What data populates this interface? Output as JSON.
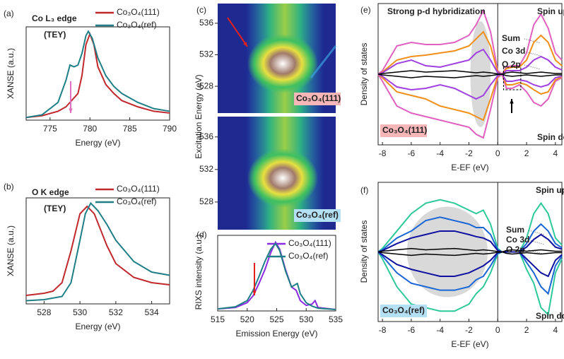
{
  "chart_data": [
    {
      "type": "line",
      "panel": "(a)",
      "annotations": [
        "Co L₃ edge",
        "(TEY)"
      ],
      "xlabel": "Energy (eV)",
      "ylabel": "XANSE (a.u.)",
      "xlim": [
        772,
        790
      ],
      "xticks": [
        775,
        780,
        785,
        790
      ],
      "ylim": [
        0,
        1.05
      ],
      "series": [
        {
          "name": "Co₃O₄(111)",
          "color": "#c0282d",
          "x": [
            772,
            774,
            776,
            777,
            778,
            778.5,
            779,
            779.5,
            780,
            780.5,
            781,
            782,
            783,
            784,
            786,
            788,
            790
          ],
          "values": [
            0.03,
            0.05,
            0.1,
            0.15,
            0.25,
            0.3,
            0.5,
            0.85,
            0.97,
            0.85,
            0.6,
            0.4,
            0.3,
            0.22,
            0.15,
            0.1,
            0.08
          ]
        },
        {
          "name": "Co₃O₄(ref)",
          "color": "#1e7f86",
          "x": [
            772,
            774,
            776,
            777,
            777.5,
            778,
            778.5,
            779,
            779.5,
            779.8,
            780.3,
            781,
            782,
            783,
            784,
            786,
            788,
            790
          ],
          "values": [
            0.03,
            0.06,
            0.2,
            0.45,
            0.62,
            0.6,
            0.62,
            0.75,
            0.95,
            1.0,
            0.92,
            0.7,
            0.5,
            0.38,
            0.3,
            0.2,
            0.13,
            0.1
          ]
        }
      ]
    },
    {
      "type": "line",
      "panel": "(b)",
      "annotations": [
        "O K edge",
        "(TEY)"
      ],
      "xlabel": "Energy (eV)",
      "ylabel": "XANSE (a.u.)",
      "xlim": [
        527,
        535
      ],
      "xticks": [
        528,
        530,
        532,
        534
      ],
      "ylim": [
        0,
        1
      ],
      "series": [
        {
          "name": "Co₃O₄(111)",
          "color": "#c0282d",
          "x": [
            527,
            528,
            528.5,
            529,
            529.5,
            530,
            530.4,
            530.8,
            531.5,
            532,
            533,
            534,
            535
          ],
          "values": [
            0.08,
            0.1,
            0.12,
            0.2,
            0.5,
            0.85,
            0.92,
            0.85,
            0.55,
            0.38,
            0.25,
            0.2,
            0.18
          ]
        },
        {
          "name": "Co₃O₄(ref)",
          "color": "#1e7f86",
          "x": [
            527,
            528,
            529,
            529.5,
            530,
            530.3,
            530.6,
            531,
            531.5,
            532,
            533,
            534,
            535
          ],
          "values": [
            0.03,
            0.04,
            0.07,
            0.2,
            0.6,
            0.85,
            0.95,
            0.88,
            0.75,
            0.6,
            0.4,
            0.3,
            0.27
          ]
        }
      ]
    },
    {
      "type": "heatmap",
      "panel": "(c)",
      "ylabel": "Excitation Energy (eV)",
      "label": "Co₃O₄(111)",
      "ylim": [
        524.6,
        538.5
      ],
      "yticks": [
        528,
        532,
        536
      ]
    },
    {
      "type": "heatmap",
      "label": "Co₃O₄(ref)",
      "ylim": [
        524.6,
        538.5
      ],
      "yticks": [
        528,
        532,
        536
      ]
    },
    {
      "type": "line",
      "panel": "(d)",
      "xlabel": "Emission Energy (eV)",
      "ylabel": "RIXS intensity (a.u.)",
      "xlim": [
        515,
        535
      ],
      "xticks": [
        515,
        520,
        525,
        530,
        535
      ],
      "ylim": [
        0,
        1.1
      ],
      "series": [
        {
          "name": "Co₃O₄(111)",
          "color": "#8a2be2",
          "x": [
            515,
            518,
            520,
            521,
            522,
            523,
            524,
            524.8,
            525.5,
            526.5,
            527.5,
            528.3,
            529,
            530,
            531,
            531.5,
            532,
            535
          ],
          "values": [
            0.03,
            0.05,
            0.12,
            0.22,
            0.4,
            0.6,
            0.85,
            1.0,
            0.9,
            0.6,
            0.35,
            0.3,
            0.15,
            0.08,
            0.1,
            0.15,
            0.05,
            0.02
          ]
        },
        {
          "name": "Co₃O₄(ref)",
          "color": "#1e7f86",
          "x": [
            515,
            518,
            520,
            521,
            522,
            523,
            524,
            524.8,
            525.5,
            526.5,
            527.5,
            528.5,
            529,
            530,
            531,
            532,
            535
          ],
          "values": [
            0.03,
            0.06,
            0.15,
            0.3,
            0.5,
            0.72,
            0.9,
            0.98,
            0.88,
            0.58,
            0.35,
            0.4,
            0.25,
            0.12,
            0.07,
            0.04,
            0.02
          ]
        }
      ]
    },
    {
      "type": "dos",
      "panel": "(e)",
      "annotations": [
        "Strong p-d hybridization",
        "Spin up",
        "Spin down"
      ],
      "label": "Co₃O₄(111)",
      "xlabel": "E-EF (eV)",
      "ylabel": "Density of states",
      "xlim": [
        -8.3,
        4.45
      ],
      "xticks": [
        -8,
        -6,
        -4,
        -2,
        0,
        2,
        4
      ],
      "ylim": [
        -1,
        1
      ],
      "x": [
        -8.3,
        -8,
        -7,
        -6,
        -5,
        -4,
        -3,
        -2,
        -1.5,
        -1,
        -0.5,
        0,
        0.3,
        0.6,
        1,
        1.5,
        2,
        2.5,
        3,
        3.5,
        4,
        4.45
      ],
      "series": [
        {
          "name": "Sum",
          "color": "#e060c0",
          "values": [
            0,
            0.05,
            0.4,
            0.45,
            0.42,
            0.42,
            0.45,
            0.55,
            0.7,
            0.9,
            0.6,
            0.05,
            0,
            0.1,
            0.12,
            0.12,
            0.3,
            0.7,
            0.85,
            0.65,
            0.3,
            0.2
          ],
          "down": [
            0,
            -0.1,
            -0.45,
            -0.55,
            -0.6,
            -0.65,
            -0.7,
            -0.75,
            -0.85,
            -0.9,
            -0.5,
            -0.05,
            0,
            -0.2,
            -0.2,
            -0.15,
            -0.25,
            -0.4,
            -0.45,
            -0.35,
            -0.1,
            -0.05
          ]
        },
        {
          "name": "Co 3d",
          "color": "#f0901a",
          "values": [
            0,
            0.03,
            0.2,
            0.25,
            0.27,
            0.3,
            0.33,
            0.4,
            0.5,
            0.6,
            0.4,
            0.03,
            0,
            0.08,
            0.1,
            0.1,
            0.2,
            0.45,
            0.55,
            0.45,
            0.2,
            0.12
          ],
          "down": [
            0,
            -0.05,
            -0.25,
            -0.3,
            -0.35,
            -0.45,
            -0.5,
            -0.55,
            -0.6,
            -0.65,
            -0.35,
            -0.03,
            0,
            -0.15,
            -0.15,
            -0.12,
            -0.15,
            -0.22,
            -0.28,
            -0.25,
            -0.08,
            -0.04
          ]
        },
        {
          "name": "O 2p",
          "color": "#a040e0",
          "values": [
            0,
            0.02,
            0.15,
            0.2,
            0.12,
            0.1,
            0.15,
            0.2,
            0.3,
            0.35,
            0.2,
            0.02,
            0,
            0.05,
            0.05,
            0.05,
            0.1,
            0.2,
            0.25,
            0.2,
            0.1,
            0.06
          ],
          "down": [
            0,
            -0.03,
            -0.18,
            -0.22,
            -0.2,
            -0.15,
            -0.2,
            -0.3,
            -0.35,
            -0.3,
            -0.15,
            -0.02,
            0,
            -0.1,
            -0.1,
            -0.08,
            -0.1,
            -0.15,
            -0.18,
            -0.15,
            -0.05,
            -0.03
          ]
        },
        {
          "color": "#000000",
          "values": [
            0,
            0.01,
            0.03,
            0.05,
            0.03,
            0.04,
            0.05,
            0.03,
            0.02,
            0.03,
            0.02,
            0.005,
            0,
            0.02,
            0.03,
            0.02,
            0.01,
            0.02,
            0.03,
            0.02,
            0.01,
            0.01
          ],
          "down": [
            0,
            -0.01,
            -0.03,
            -0.05,
            -0.03,
            -0.04,
            -0.05,
            -0.03,
            -0.02,
            -0.03,
            -0.02,
            -0.005,
            0,
            -0.02,
            -0.03,
            -0.02,
            -0.01,
            -0.02,
            -0.03,
            -0.02,
            -0.01,
            -0.01
          ]
        }
      ]
    },
    {
      "type": "dos",
      "panel": "(f)",
      "annotations": [
        "Spin up",
        "Spin down"
      ],
      "label": "Co₃O₄(ref)",
      "xlabel": "E-EF (eV)",
      "ylabel": "Density of states",
      "xlim": [
        -8.3,
        4.45
      ],
      "xticks": [
        -8,
        -6,
        -4,
        -2,
        0,
        2,
        4
      ],
      "ylim": [
        -1,
        1
      ],
      "x": [
        -8.3,
        -8,
        -7,
        -6,
        -5,
        -4,
        -3,
        -2,
        -1.5,
        -1,
        -0.5,
        0,
        0.3,
        0.6,
        1,
        1.5,
        2,
        2.5,
        3,
        3.5,
        4,
        4.45
      ],
      "series": [
        {
          "name": "Sum",
          "color": "#2dc99a",
          "values": [
            0,
            0.05,
            0.3,
            0.55,
            0.7,
            0.75,
            0.7,
            0.6,
            0.55,
            0.6,
            0.4,
            0.05,
            0,
            0,
            0,
            0,
            0.2,
            0.55,
            0.7,
            0.55,
            0.2,
            0.1
          ],
          "down": [
            0,
            -0.1,
            -0.5,
            -0.75,
            -0.8,
            -0.85,
            -0.85,
            -0.75,
            -0.6,
            -0.5,
            -0.3,
            -0.03,
            0,
            0,
            0,
            0,
            -0.25,
            -0.45,
            -0.8,
            -0.9,
            -0.3,
            -0.1
          ]
        },
        {
          "name": "Co 3d",
          "color": "#1a66d6",
          "values": [
            0,
            0.03,
            0.2,
            0.3,
            0.45,
            0.5,
            0.45,
            0.4,
            0.35,
            0.35,
            0.25,
            0.03,
            0,
            0,
            0,
            0,
            0.12,
            0.3,
            0.4,
            0.3,
            0.12,
            0.06
          ],
          "down": [
            0,
            -0.06,
            -0.3,
            -0.45,
            -0.5,
            -0.55,
            -0.55,
            -0.5,
            -0.4,
            -0.35,
            -0.2,
            -0.02,
            0,
            0,
            0,
            0,
            -0.15,
            -0.3,
            -0.5,
            -0.6,
            -0.2,
            -0.06
          ]
        },
        {
          "name": "O 2p",
          "color": "#1010a0",
          "values": [
            0,
            0.02,
            0.12,
            0.2,
            0.25,
            0.3,
            0.3,
            0.25,
            0.22,
            0.2,
            0.15,
            0.02,
            0,
            0,
            0,
            0,
            0.07,
            0.18,
            0.25,
            0.18,
            0.07,
            0.04
          ],
          "down": [
            0,
            -0.04,
            -0.18,
            -0.25,
            -0.3,
            -0.35,
            -0.35,
            -0.3,
            -0.25,
            -0.2,
            -0.12,
            -0.01,
            0,
            0,
            0,
            0,
            -0.1,
            -0.2,
            -0.3,
            -0.35,
            -0.12,
            -0.04
          ]
        },
        {
          "color": "#000000",
          "values": [
            0,
            0.01,
            0.03,
            0.05,
            0.03,
            0.04,
            0.05,
            0.03,
            0.02,
            0.03,
            0.02,
            0.005,
            0,
            0.02,
            0.03,
            0.02,
            0.01,
            0.02,
            0.03,
            0.02,
            0.01,
            0.01
          ],
          "down": [
            0,
            -0.01,
            -0.03,
            -0.05,
            -0.03,
            -0.04,
            -0.05,
            -0.03,
            -0.02,
            -0.03,
            -0.02,
            -0.005,
            0,
            -0.02,
            -0.03,
            -0.02,
            -0.01,
            -0.02,
            -0.03,
            -0.02,
            -0.01,
            -0.01
          ]
        }
      ]
    }
  ]
}
